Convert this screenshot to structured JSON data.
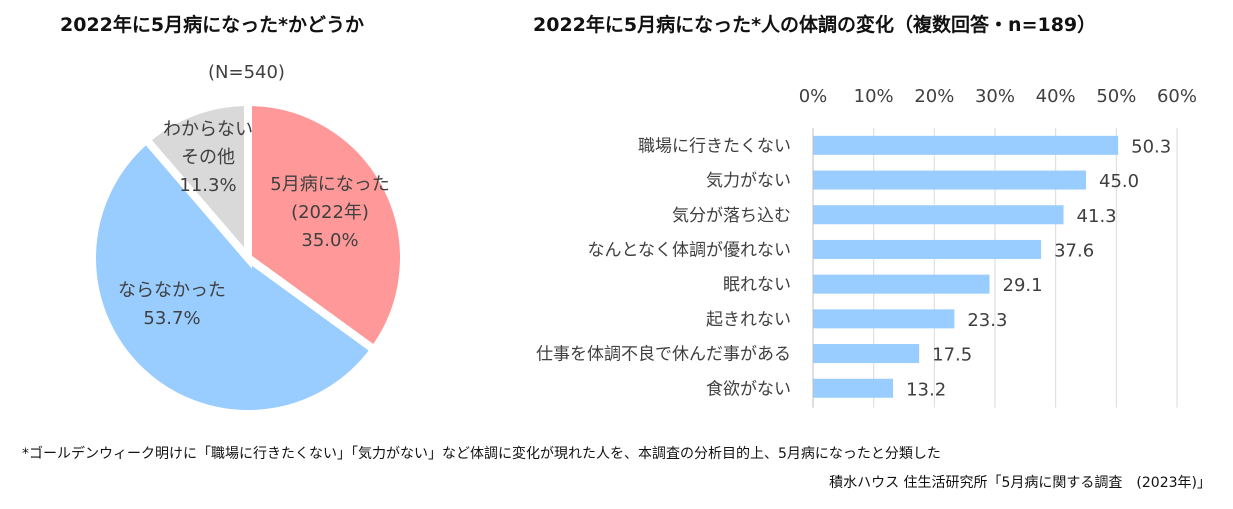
{
  "chart_data": [
    {
      "type": "pie",
      "title": "2022年に5月病になった*かどうか",
      "subtitle": "(N=540)",
      "slices": [
        {
          "label_lines": [
            "5月病になった",
            "(2022年)"
          ],
          "value": 35.0,
          "value_label": "35.0%",
          "color": "#ff9999"
        },
        {
          "label_lines": [
            "ならなかった"
          ],
          "value": 53.7,
          "value_label": "53.7%",
          "color": "#99ccff"
        },
        {
          "label_lines": [
            "わからない",
            "その他"
          ],
          "value": 11.3,
          "value_label": "11.3%",
          "color": "#d9d9d9"
        }
      ]
    },
    {
      "type": "bar",
      "orientation": "horizontal",
      "title": "2022年に5月病になった*人の体調の変化（複数回答・n=189）",
      "categories": [
        "職場に行きたくない",
        "気力がない",
        "気分が落ち込む",
        "なんとなく体調が優れない",
        "眠れない",
        "起きれない",
        "仕事を体調不良で休んだ事がある",
        "食欲がない"
      ],
      "values": [
        50.3,
        45.0,
        41.3,
        37.6,
        29.1,
        23.3,
        17.5,
        13.2
      ],
      "value_labels": [
        "50.3",
        "45.0",
        "41.3",
        "37.6",
        "29.1",
        "23.3",
        "17.5",
        "13.2"
      ],
      "xlim": [
        0,
        60
      ],
      "xticks": [
        "0%",
        "10%",
        "20%",
        "30%",
        "40%",
        "50%",
        "60%"
      ],
      "grid": true,
      "color": "#99ccff"
    }
  ],
  "footnote": "*ゴールデンウィーク明けに「職場に行きたくない」「気力がない」など体調に変化が現れた人を、本調査の分析目的上、5月病になったと分類した",
  "source": "積水ハウス 住生活研究所「5月病に関する調査　(2023年)」"
}
